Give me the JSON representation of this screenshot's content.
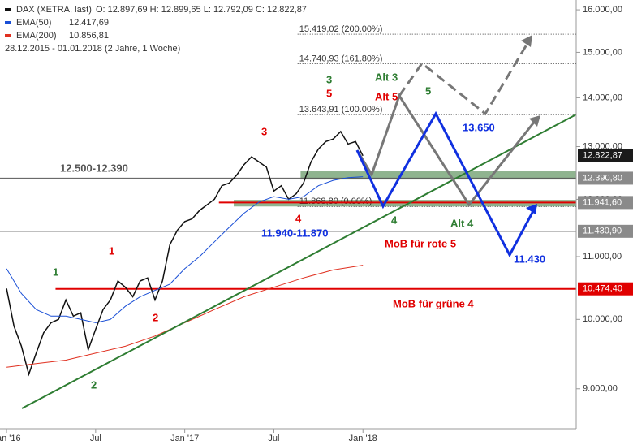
{
  "chart_data": {
    "type": "line",
    "legend": [
      {
        "name": "DAX (XETRA, last)",
        "text": "O: 12.897,69   H: 12.899,65   L: 12.792,09   C: 12.822,87",
        "color": "#111111"
      },
      {
        "name": "EMA(50)",
        "text": "12.417,69",
        "color": "#1a4fd6"
      },
      {
        "name": "EMA(200)",
        "text": "10.856,81",
        "color": "#e03020"
      }
    ],
    "period": "28.12.2015 - 01.01.2018   (2 Jahre, 1 Woche)",
    "log_scale": true,
    "xlim": [
      -0.44,
      38.36
    ],
    "ylim": [
      8470,
      16240
    ],
    "xticks": [
      {
        "value": 0,
        "label": "Jan '16"
      },
      {
        "value": 6,
        "label": "Jul"
      },
      {
        "value": 12,
        "label": "Jan '17"
      },
      {
        "value": 18,
        "label": "Jul"
      },
      {
        "value": 24,
        "label": "Jan '18"
      }
    ],
    "yticks": [
      {
        "value": 9000,
        "label": "9.000,00"
      },
      {
        "value": 10000,
        "label": "10.000,00"
      },
      {
        "value": 11000,
        "label": "11.000,00"
      },
      {
        "value": 12000,
        "label": "12.000,00"
      },
      {
        "value": 13000,
        "label": "13.000,00"
      },
      {
        "value": 14000,
        "label": "14.000,00"
      },
      {
        "value": 15000,
        "label": "15.000,00"
      },
      {
        "value": 16000,
        "label": "16.000,00"
      }
    ],
    "series": [
      {
        "name": "DAX (XETRA, last)",
        "color": "#111111",
        "x": [
          0,
          0.5,
          1,
          1.5,
          2,
          2.5,
          3,
          3.5,
          4,
          4.5,
          5,
          5.5,
          6,
          6.5,
          7,
          7.5,
          8,
          8.5,
          9,
          9.5,
          10,
          10.5,
          11,
          11.5,
          12,
          12.5,
          13,
          13.5,
          14,
          14.5,
          15,
          15.5,
          16,
          16.5,
          17,
          17.5,
          18,
          18.5,
          19,
          19.5,
          20,
          20.5,
          21,
          21.5,
          22,
          22.5,
          23,
          23.5,
          24
        ],
        "values": [
          10480,
          9900,
          9600,
          9200,
          9500,
          9800,
          9950,
          10000,
          10300,
          10050,
          10100,
          9550,
          9850,
          10150,
          10300,
          10600,
          10500,
          10350,
          10600,
          10650,
          10300,
          10600,
          11200,
          11450,
          11600,
          11650,
          11800,
          11900,
          12000,
          12250,
          12300,
          12450,
          12650,
          12800,
          12700,
          12600,
          12150,
          12250,
          12000,
          12100,
          12300,
          12700,
          12950,
          13100,
          13150,
          13300,
          13050,
          13100,
          12820
        ]
      },
      {
        "name": "EMA(50)",
        "color": "#1a4fd6",
        "x": [
          0,
          1,
          2,
          3,
          4,
          5,
          6,
          7,
          8,
          9,
          10,
          11,
          12,
          13,
          14,
          15,
          16,
          17,
          18,
          19,
          20,
          21,
          22,
          23,
          24
        ],
        "values": [
          10800,
          10400,
          10150,
          10050,
          10050,
          10000,
          9950,
          10000,
          10200,
          10350,
          10450,
          10550,
          10800,
          11000,
          11250,
          11500,
          11750,
          11950,
          12050,
          12000,
          12050,
          12250,
          12350,
          12400,
          12418
        ]
      },
      {
        "name": "EMA(200)",
        "color": "#e03020",
        "x": [
          0,
          2,
          4,
          6,
          8,
          10,
          12,
          14,
          16,
          18,
          20,
          22,
          24
        ],
        "values": [
          9300,
          9350,
          9400,
          9500,
          9600,
          9750,
          9950,
          10150,
          10350,
          10500,
          10650,
          10780,
          10857
        ]
      }
    ],
    "bands": [
      {
        "low": 12365,
        "high": 12520,
        "from": 19.8,
        "color": "#8fb48f"
      },
      {
        "low": 11870,
        "high": 11990,
        "from": 15.3,
        "color": "#8fb48f"
      }
    ],
    "fib_levels": [
      {
        "value": 15419.02,
        "label": "15.419,02 (200.00%)",
        "from": 19.6
      },
      {
        "value": 14740.93,
        "label": "14.740,93 (161.80%)",
        "from": 19.6
      },
      {
        "value": 13643.91,
        "label": "13.643,91 (100.00%)",
        "from": 19.6
      },
      {
        "value": 11868.8,
        "label": "11.868,80 (0.00%)",
        "from": 19.6
      }
    ],
    "levels": [
      {
        "value": 12822.87,
        "label": "12.822,87",
        "box": "#1a1a1a",
        "line": null,
        "from": 24
      },
      {
        "value": 12390.8,
        "label": "12.390,80",
        "box": "#8a8a8a",
        "line": "#555555",
        "from": -0.44
      },
      {
        "value": 11941.6,
        "label": "11.941,60",
        "box": "#8a8a8a",
        "line": "#e00000",
        "from": 14.3
      },
      {
        "value": 11430.9,
        "label": "11.430,90",
        "box": "#8a8a8a",
        "line": "#555555",
        "from": -0.44
      },
      {
        "value": 10474.4,
        "label": "10.474,40",
        "box": "#e00000",
        "line": "#e00000",
        "from": 3.3
      }
    ],
    "annotations": [
      "1",
      "1",
      "2",
      "2",
      "3",
      "3",
      "5",
      "4",
      "4",
      "5",
      "Alt 3",
      "Alt 5",
      "Alt 4",
      "12.500-12.390",
      "11.940-11.870",
      "13.650",
      "11.430",
      "MoB für rote 5",
      "MoB für grüne 4"
    ]
  }
}
